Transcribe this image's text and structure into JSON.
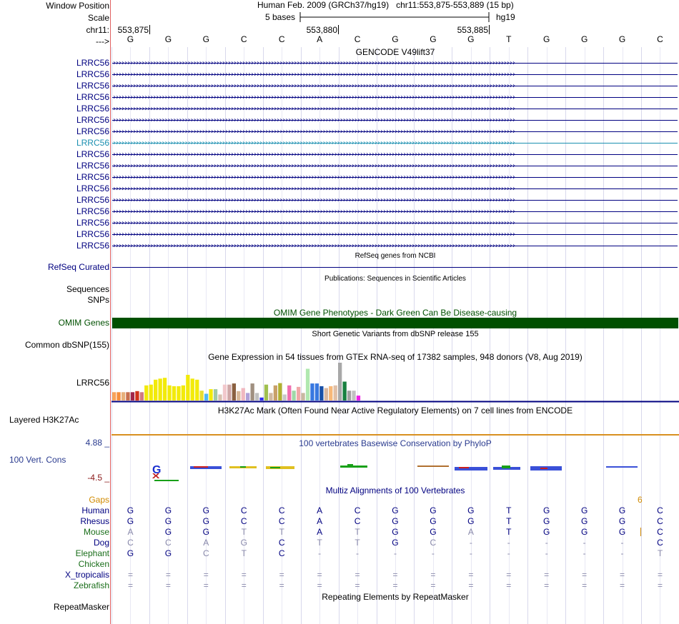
{
  "header": {
    "window_position_label": "Window Position",
    "scale_label": "Scale",
    "chrom_label": "chr11:",
    "strand_label": "--->",
    "assembly": "Human Feb. 2009 (GRCh37/hg19)",
    "position": "chr11:553,875-553,889 (15 bp)",
    "scale_text": "5 bases",
    "db": "hg19",
    "ticks": [
      "553,875",
      "553,880",
      "553,885"
    ]
  },
  "sequence": [
    "G",
    "G",
    "G",
    "C",
    "C",
    "A",
    "C",
    "G",
    "G",
    "G",
    "T",
    "G",
    "G",
    "G",
    "C"
  ],
  "gencode": {
    "title": "GENCODE V49lift37",
    "gene_label": "LRRC56",
    "rows": 17,
    "highlight_row": 7,
    "colors": {
      "normal": "#000080",
      "highlight": "#1a8fb0"
    }
  },
  "refseq": {
    "title": "RefSeq genes from NCBI",
    "label": "RefSeq Curated",
    "color": "#000080"
  },
  "publications": {
    "title": "Publications: Sequences in Scientific Articles",
    "label1": "Sequences",
    "label2": "SNPs"
  },
  "omim": {
    "title": "OMIM Gene Phenotypes - Dark Green Can Be Disease-causing",
    "label": "OMIM Genes",
    "color": "#005000"
  },
  "dbsnp": {
    "title": "Short Genetic Variants from dbSNP release 155",
    "label": "Common dbSNP(155)"
  },
  "gtex": {
    "title": "Gene Expression in 54 tissues from GTEx RNA-seq of 17382 samples, 948 donors (V8, Aug 2019)",
    "label": "LRRC56",
    "values": [
      0.22,
      0.22,
      0.22,
      0.22,
      0.22,
      0.25,
      0.22,
      0.4,
      0.42,
      0.55,
      0.58,
      0.6,
      0.4,
      0.38,
      0.38,
      0.4,
      0.68,
      0.58,
      0.55,
      0.26,
      0.18,
      0.3,
      0.3,
      0.16,
      0.42,
      0.42,
      0.45,
      0.25,
      0.33,
      0.2,
      0.45,
      0.2,
      0.08,
      0.42,
      0.2,
      0.4,
      0.46,
      0.16,
      0.4,
      0.26,
      0.36,
      0.2,
      0.84,
      0.45,
      0.45,
      0.38,
      0.33,
      0.38,
      0.4,
      1.0,
      0.5,
      0.26,
      0.26,
      0.13
    ],
    "colors": [
      "#f8a35a",
      "#f58d3c",
      "#e7b07a",
      "#c86f4e",
      "#a0254a",
      "#d0321a",
      "#d07a82",
      "#f2ea0a",
      "#f2ea0a",
      "#f2ea0a",
      "#f2ea0a",
      "#f2ea0a",
      "#f2ea0a",
      "#f2ea0a",
      "#f2ea0a",
      "#f2ea0a",
      "#f2ea0a",
      "#f2ea0a",
      "#f2ea0a",
      "#e8dd30",
      "#50b8f0",
      "#f2ea0a",
      "#a0c8a8",
      "#d8c0b0",
      "#f2c8cc",
      "#d0a8a8",
      "#8a6040",
      "#d8b898",
      "#f0b8c0",
      "#b0a0d8",
      "#a09080",
      "#c0c0c0",
      "#3030f0",
      "#a0c050",
      "#d0b8a0",
      "#c8a068",
      "#b0b030",
      "#c8c8c8",
      "#f070b0",
      "#a0d8a8",
      "#f0a8a8",
      "#c8b8a0",
      "#b0e8b0",
      "#3878e0",
      "#3878e0",
      "#1850a8",
      "#d8b8a0",
      "#f8b878",
      "#e0c0a8",
      "#a8a8a8",
      "#188040",
      "#a0a0a0",
      "#c0c0c0",
      "#f020e8"
    ]
  },
  "h3k27ac": {
    "title": "H3K27Ac Mark (Often Found Near Active Regulatory Elements) on 7 cell lines from ENCODE",
    "label": "Layered H3K27Ac"
  },
  "phylop": {
    "title": "100 vertebrates Basewise Conservation by PhyloP",
    "label": "100 Vert. Cons",
    "max_label": "4.88 _",
    "min_label": "-4.5 _"
  },
  "multiz": {
    "title": "Multiz Alignments of 100 Vertebrates",
    "gaps_label": "Gaps",
    "gap_count": "6",
    "species": [
      {
        "name": "Human",
        "color": "#000080",
        "bases": [
          "G",
          "G",
          "G",
          "C",
          "C",
          "A",
          "C",
          "G",
          "G",
          "G",
          "T",
          "G",
          "G",
          "G",
          "C"
        ]
      },
      {
        "name": "Rhesus",
        "color": "#000080",
        "bases": [
          "G",
          "G",
          "G",
          "C",
          "C",
          "A",
          "C",
          "G",
          "G",
          "G",
          "T",
          "G",
          "G",
          "G",
          "C"
        ]
      },
      {
        "name": "Mouse",
        "color": "#1a6e1a",
        "bases": [
          "A",
          "G",
          "G",
          "T",
          "T",
          "A",
          "T",
          "G",
          "G",
          "A",
          "T",
          "G",
          "G",
          "G",
          "C"
        ]
      },
      {
        "name": "Dog",
        "color": "#000080",
        "bases": [
          "C",
          "C",
          "A",
          "G",
          "C",
          "T",
          "T",
          "G",
          "C",
          "-",
          "-",
          "-",
          "-",
          "-",
          "C"
        ]
      },
      {
        "name": "Elephant",
        "color": "#1a6e1a",
        "bases": [
          "G",
          "G",
          "C",
          "T",
          "C",
          "-",
          "-",
          "-",
          "-",
          "-",
          "-",
          "-",
          "-",
          "-",
          "T"
        ]
      },
      {
        "name": "Chicken",
        "color": "#1a6e1a",
        "bases": [
          "",
          "",
          "",
          "",
          "",
          "",
          "",
          "",
          "",
          "",
          "",
          "",
          "",
          "",
          ""
        ]
      },
      {
        "name": "X_tropicalis",
        "color": "#000080",
        "bases": [
          "=",
          "=",
          "=",
          "=",
          "=",
          "=",
          "=",
          "=",
          "=",
          "=",
          "=",
          "=",
          "=",
          "=",
          "="
        ]
      },
      {
        "name": "Zebrafish",
        "color": "#1a6e1a",
        "bases": [
          "=",
          "=",
          "=",
          "=",
          "=",
          "=",
          "=",
          "=",
          "=",
          "=",
          "=",
          "=",
          "=",
          "=",
          "="
        ]
      }
    ]
  },
  "repeatmasker": {
    "title": "Repeating Elements by RepeatMasker",
    "label": "RepeatMasker"
  }
}
